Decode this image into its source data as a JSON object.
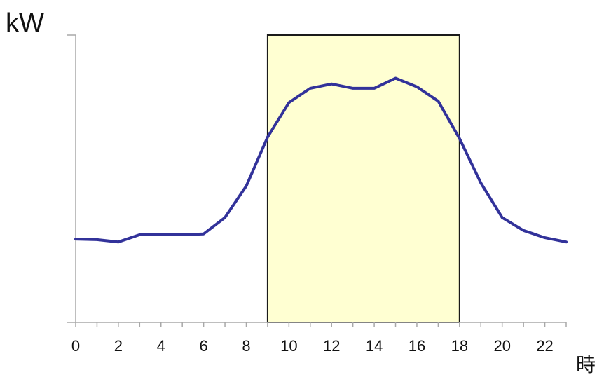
{
  "chart_data": {
    "type": "line",
    "ylabel": "kW",
    "xlabel": "時",
    "xlim": [
      0,
      23
    ],
    "ylim": [
      0,
      100
    ],
    "x_ticks": [
      0,
      1,
      2,
      3,
      4,
      5,
      6,
      7,
      8,
      9,
      10,
      11,
      12,
      13,
      14,
      15,
      16,
      17,
      18,
      19,
      20,
      21,
      22,
      23
    ],
    "x_tick_labels": [
      {
        "x": 0,
        "label": "0"
      },
      {
        "x": 2,
        "label": "2"
      },
      {
        "x": 4,
        "label": "4"
      },
      {
        "x": 6,
        "label": "6"
      },
      {
        "x": 8,
        "label": "8"
      },
      {
        "x": 10,
        "label": "10"
      },
      {
        "x": 12,
        "label": "12"
      },
      {
        "x": 14,
        "label": "14"
      },
      {
        "x": 16,
        "label": "16"
      },
      {
        "x": 18,
        "label": "18"
      },
      {
        "x": 20,
        "label": "20"
      },
      {
        "x": 22,
        "label": "22"
      }
    ],
    "highlight_range": {
      "x_start": 9,
      "x_end": 18,
      "color": "#ffffd2",
      "border_color": "#1a1a1a"
    },
    "grid": false,
    "series": [
      {
        "color": "#32329a",
        "x": [
          0,
          1,
          2,
          3,
          4,
          5,
          6,
          7,
          8,
          9,
          10,
          11,
          12,
          13,
          14,
          15,
          16,
          17,
          18,
          19,
          20,
          21,
          22,
          23
        ],
        "values": [
          29,
          28.8,
          28,
          30.5,
          30.5,
          30.5,
          30.8,
          36.5,
          47.5,
          64.5,
          76.5,
          81.5,
          83,
          81.5,
          81.5,
          85,
          82,
          77,
          64,
          48.5,
          36.5,
          32,
          29.5,
          28
        ]
      }
    ]
  }
}
